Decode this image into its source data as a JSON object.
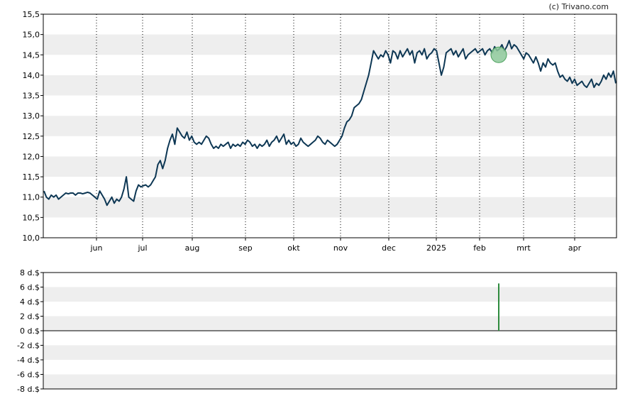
{
  "credit": "(c) Trivano.com",
  "colors": {
    "line": "#0d3754",
    "band": "#eeeeee",
    "marker_fill": "#8dc89a",
    "marker_stroke": "#4aa05c",
    "dividend_bar": "#2e8b3e",
    "grid": "#000000"
  },
  "chart_data": [
    {
      "type": "line",
      "ylim": [
        10.0,
        15.5
      ],
      "yticks": [
        "10,0",
        "10,5",
        "11,0",
        "11,5",
        "12,0",
        "12,5",
        "13,0",
        "13,5",
        "14,0",
        "14,5",
        "15,0",
        "15,5"
      ],
      "xticks": [
        "jun",
        "jul",
        "aug",
        "sep",
        "okt",
        "nov",
        "dec",
        "2025",
        "feb",
        "mrt",
        "apr"
      ],
      "grid": "vertical dotted at month ticks, alternating horizontal bands",
      "series": [
        {
          "values": [
            11.15,
            11.0,
            10.95,
            11.05,
            11.0,
            11.05,
            10.95,
            11.0,
            11.05,
            11.1,
            11.08,
            11.1,
            11.1,
            11.05,
            11.1,
            11.1,
            11.08,
            11.1,
            11.12,
            11.1,
            11.05,
            11.0,
            10.95,
            11.15,
            11.05,
            10.95,
            10.8,
            10.9,
            11.0,
            10.85,
            10.95,
            10.9,
            11.0,
            11.2,
            11.5,
            11.0,
            10.95,
            10.9,
            11.15,
            11.3,
            11.25,
            11.28,
            11.3,
            11.25,
            11.3,
            11.4,
            11.5,
            11.8,
            11.9,
            11.7,
            11.9,
            12.2,
            12.4,
            12.55,
            12.3,
            12.7,
            12.6,
            12.5,
            12.45,
            12.6,
            12.4,
            12.5,
            12.35,
            12.3,
            12.35,
            12.3,
            12.4,
            12.5,
            12.45,
            12.3,
            12.2,
            12.25,
            12.2,
            12.3,
            12.25,
            12.3,
            12.35,
            12.2,
            12.3,
            12.25,
            12.3,
            12.25,
            12.35,
            12.3,
            12.4,
            12.35,
            12.25,
            12.3,
            12.2,
            12.3,
            12.25,
            12.3,
            12.4,
            12.25,
            12.35,
            12.4,
            12.5,
            12.35,
            12.45,
            12.55,
            12.3,
            12.4,
            12.3,
            12.35,
            12.25,
            12.3,
            12.45,
            12.35,
            12.3,
            12.25,
            12.3,
            12.35,
            12.4,
            12.5,
            12.45,
            12.35,
            12.3,
            12.4,
            12.35,
            12.3,
            12.25,
            12.3,
            12.4,
            12.5,
            12.7,
            12.85,
            12.9,
            13.0,
            13.2,
            13.25,
            13.3,
            13.4,
            13.6,
            13.8,
            14.0,
            14.3,
            14.6,
            14.5,
            14.4,
            14.5,
            14.45,
            14.6,
            14.5,
            14.3,
            14.6,
            14.55,
            14.4,
            14.6,
            14.45,
            14.55,
            14.65,
            14.5,
            14.6,
            14.3,
            14.55,
            14.6,
            14.5,
            14.65,
            14.4,
            14.5,
            14.55,
            14.65,
            14.6,
            14.3,
            14.0,
            14.2,
            14.55,
            14.6,
            14.65,
            14.5,
            14.6,
            14.45,
            14.55,
            14.65,
            14.4,
            14.5,
            14.55,
            14.6,
            14.65,
            14.55,
            14.6,
            14.65,
            14.5,
            14.6,
            14.65,
            14.55,
            14.7,
            14.6,
            14.65,
            14.75,
            14.6,
            14.7,
            14.85,
            14.65,
            14.75,
            14.7,
            14.6,
            14.5,
            14.4,
            14.55,
            14.5,
            14.4,
            14.3,
            14.45,
            14.3,
            14.1,
            14.3,
            14.2,
            14.4,
            14.3,
            14.25,
            14.3,
            14.1,
            13.95,
            14.0,
            13.9,
            13.85,
            13.95,
            13.8,
            13.9,
            13.75,
            13.8,
            13.85,
            13.75,
            13.7,
            13.8,
            13.9,
            13.7,
            13.8,
            13.75,
            13.85,
            14.0,
            13.9,
            14.05,
            13.95,
            14.1,
            13.8
          ]
        }
      ]
    },
    {
      "type": "bar",
      "ylim": [
        -8,
        8
      ],
      "yticks": [
        "8 d.$",
        "6 d.$",
        "4 d.$",
        "2 d.$",
        "0 d.$",
        "-2 d.$",
        "-4 d.$",
        "-6 d.$",
        "-8 d.$"
      ],
      "x_position": "mid-February",
      "values": [
        6.5
      ]
    }
  ]
}
